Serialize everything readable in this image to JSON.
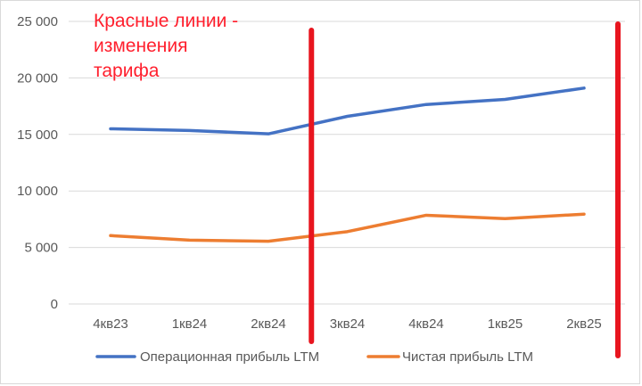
{
  "chart_data": {
    "type": "line",
    "categories": [
      "4кв23",
      "1кв24",
      "2кв24",
      "3кв24",
      "4кв24",
      "1кв25",
      "2кв25"
    ],
    "series": [
      {
        "name": "Операционная прибыль LTM",
        "color": "#4472c4",
        "values": [
          15500,
          15350,
          15050,
          16600,
          17650,
          18100,
          19100
        ]
      },
      {
        "name": "Чистая прибыль LTM",
        "color": "#ed7d31",
        "values": [
          6050,
          5650,
          5550,
          6400,
          7850,
          7550,
          7950
        ]
      }
    ],
    "ylim": [
      0,
      25000
    ],
    "yticks": [
      0,
      5000,
      10000,
      15000,
      20000,
      25000
    ],
    "ytick_labels": [
      "0",
      "5 000",
      "10 000",
      "15 000",
      "20 000",
      "25 000"
    ],
    "grid": true,
    "legend": "bottom",
    "annotation": {
      "lines": [
        "Красные линии -",
        "изменения",
        "тарифа"
      ],
      "color": "#ff1f2d"
    },
    "marker_lines": [
      {
        "color": "#e8151f",
        "between": [
          "2кв24",
          "3кв24"
        ]
      },
      {
        "color": "#e8151f",
        "after": "2кв25"
      }
    ]
  }
}
